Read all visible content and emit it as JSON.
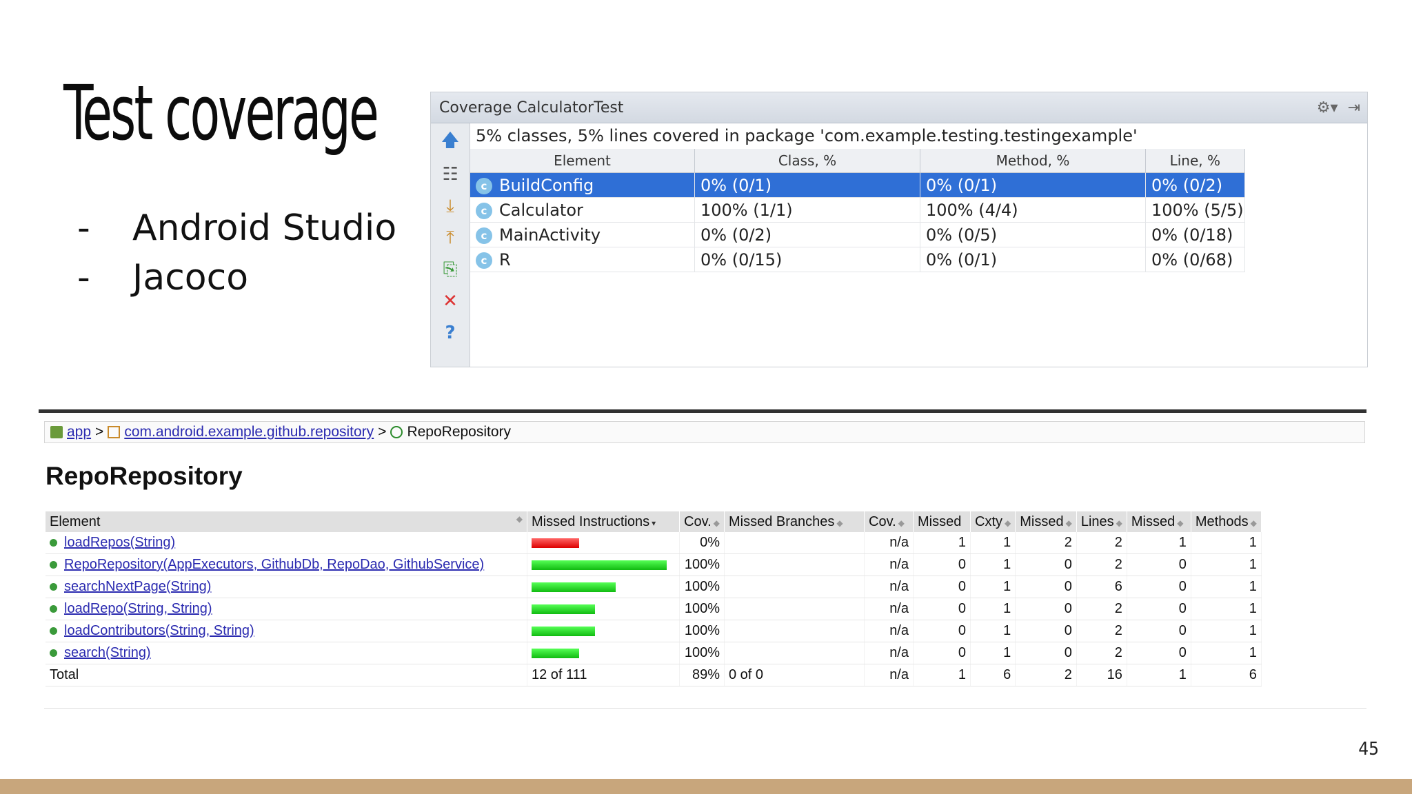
{
  "slide": {
    "title": "Test coverage",
    "bullets": [
      {
        "dash": "-",
        "text": "Android Studio"
      },
      {
        "dash": "-",
        "text": "Jacoco"
      }
    ],
    "page_number": "45"
  },
  "ide": {
    "title": "Coverage CalculatorTest",
    "summary": "5% classes, 5% lines covered in package 'com.example.testing.testingexample'",
    "columns": [
      "Element",
      "Class, %",
      "Method, %",
      "Line, %"
    ],
    "rows": [
      {
        "name": "BuildConfig",
        "class": "0% (0/1)",
        "method": "0% (0/1)",
        "line": "0% (0/2)",
        "selected": true
      },
      {
        "name": "Calculator",
        "class": "100% (1/1)",
        "method": "100% (4/4)",
        "line": "100% (5/5)"
      },
      {
        "name": "MainActivity",
        "class": "0% (0/2)",
        "method": "0% (0/5)",
        "line": "0% (0/18)"
      },
      {
        "name": "R",
        "class": "0% (0/15)",
        "method": "0% (0/1)",
        "line": "0% (0/68)"
      }
    ],
    "colors": {
      "selection": "#2f6fd6"
    }
  },
  "report": {
    "breadcrumb": {
      "app": "app",
      "package": "com.android.example.github.repository",
      "current": "RepoRepository",
      "separator": ">"
    },
    "title": "RepoRepository",
    "columns": [
      "Element",
      "Missed Instructions",
      "Cov.",
      "Missed Branches",
      "Cov.",
      "Missed",
      "Cxty",
      "Missed",
      "Lines",
      "Missed",
      "Methods"
    ],
    "rows": [
      {
        "name": "loadRepos(String)",
        "missed_fraction": 1.0,
        "cov": "0%",
        "branch_cov": "n/a",
        "missed_cxty": "1",
        "cxty": "1",
        "missed_lines": "2",
        "lines": "2",
        "missed_methods": "1",
        "methods": "1"
      },
      {
        "name": "RepoRepository(AppExecutors, GithubDb, RepoDao, GithubService)",
        "missed_fraction": 0.0,
        "cov": "100%",
        "branch_cov": "n/a",
        "missed_cxty": "0",
        "cxty": "1",
        "missed_lines": "0",
        "lines": "2",
        "missed_methods": "0",
        "methods": "1"
      },
      {
        "name": "searchNextPage(String)",
        "missed_fraction": 0.0,
        "cov": "100%",
        "branch_cov": "n/a",
        "missed_cxty": "0",
        "cxty": "1",
        "missed_lines": "0",
        "lines": "6",
        "missed_methods": "0",
        "methods": "1"
      },
      {
        "name": "loadRepo(String, String)",
        "missed_fraction": 0.0,
        "cov": "100%",
        "branch_cov": "n/a",
        "missed_cxty": "0",
        "cxty": "1",
        "missed_lines": "0",
        "lines": "2",
        "missed_methods": "0",
        "methods": "1"
      },
      {
        "name": "loadContributors(String, String)",
        "missed_fraction": 0.0,
        "cov": "100%",
        "branch_cov": "n/a",
        "missed_cxty": "0",
        "cxty": "1",
        "missed_lines": "0",
        "lines": "2",
        "missed_methods": "0",
        "methods": "1"
      },
      {
        "name": "search(String)",
        "missed_fraction": 0.0,
        "cov": "100%",
        "branch_cov": "n/a",
        "missed_cxty": "0",
        "cxty": "1",
        "missed_lines": "0",
        "lines": "2",
        "missed_methods": "0",
        "methods": "1"
      }
    ],
    "instruction_bar_relative_length": [
      0.35,
      1.0,
      0.62,
      0.47,
      0.47,
      0.35
    ],
    "total": {
      "label": "Total",
      "missed_instructions": "12 of 111",
      "cov": "89%",
      "missed_branches": "0 of 0",
      "branch_cov": "n/a",
      "missed_cxty": "1",
      "cxty": "6",
      "missed_lines": "2",
      "lines": "16",
      "missed_methods": "1",
      "methods": "6"
    },
    "colors": {
      "missed_bar": "#e02020",
      "covered_bar": "#22bb22",
      "link": "#2a2ab0"
    }
  }
}
